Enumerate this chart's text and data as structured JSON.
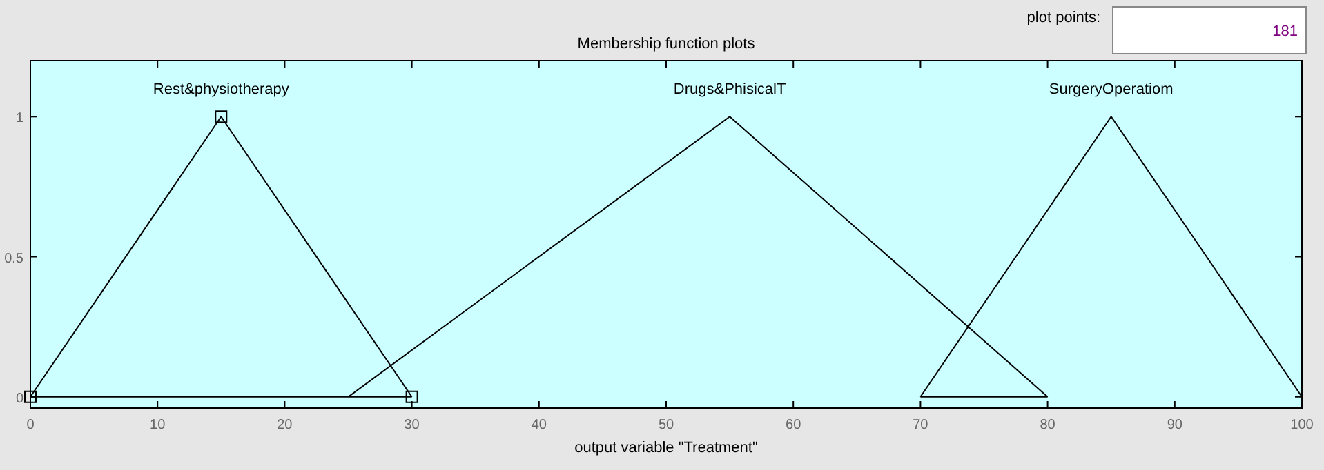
{
  "chart_data": {
    "type": "line",
    "title": "Membership function plots",
    "xlabel": "output variable \"Treatment\"",
    "xlim": [
      0,
      100
    ],
    "xticks": [
      0,
      10,
      20,
      30,
      40,
      50,
      60,
      70,
      80,
      90,
      100
    ],
    "ylim": [
      -0.04,
      1.2
    ],
    "yticks": [
      0,
      0.5,
      1
    ],
    "grid": false,
    "legend": "top",
    "line_style": "solid",
    "series": [
      {
        "name": "Rest&physiotherapy",
        "color": "#000000",
        "marker": "square",
        "x": [
          0,
          15,
          30
        ],
        "values": [
          0,
          1,
          0
        ]
      },
      {
        "color": "#000000",
        "marker": "none",
        "x": [
          0,
          30
        ],
        "values": [
          0,
          0
        ]
      },
      {
        "name": "Drugs&PhisicalT",
        "color": "#000000",
        "marker": "none",
        "x": [
          25,
          55,
          80
        ],
        "values": [
          0,
          1,
          0
        ]
      },
      {
        "color": "#000000",
        "marker": "none",
        "x": [
          70,
          80
        ],
        "values": [
          0,
          0
        ]
      },
      {
        "name": "SurgeryOperatiom",
        "color": "#000000",
        "marker": "none",
        "x": [
          70,
          85,
          100
        ],
        "values": [
          0,
          1,
          0
        ]
      }
    ],
    "annotations": [
      "plot points:",
      "181"
    ]
  }
}
